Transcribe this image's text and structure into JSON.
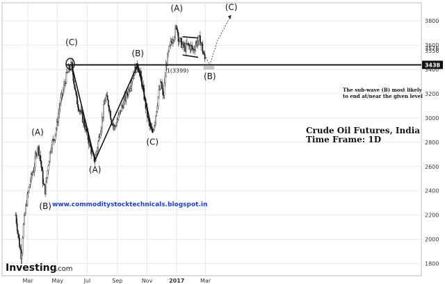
{
  "chart_data": {
    "type": "candlestick",
    "title": "Crude Oil Futures, India",
    "subtitle": "Time Frame: 1D",
    "ylim": [
      1700,
      3950
    ],
    "y_ticks": [
      1800,
      2000,
      2200,
      2400,
      2600,
      2800,
      3000,
      3200,
      3400,
      3600,
      3800
    ],
    "x_labels": [
      "Mar",
      "May",
      "Jul",
      "Sep",
      "Nov",
      "2017",
      "Mar"
    ],
    "x_label_days": [
      0,
      61,
      122,
      184,
      245,
      306,
      365
    ],
    "x_range_days": [
      -25,
      425
    ],
    "grid": true,
    "price_path": [
      [
        -25,
        2200
      ],
      [
        -18,
        1980
      ],
      [
        -13,
        1850
      ],
      [
        -10,
        2080
      ],
      [
        -3,
        2300
      ],
      [
        5,
        2480
      ],
      [
        12,
        2580
      ],
      [
        20,
        2770
      ],
      [
        25,
        2690
      ],
      [
        32,
        2450
      ],
      [
        36,
        2400
      ],
      [
        42,
        2620
      ],
      [
        48,
        2780
      ],
      [
        54,
        2830
      ],
      [
        60,
        2950
      ],
      [
        66,
        3120
      ],
      [
        72,
        3210
      ],
      [
        78,
        3330
      ],
      [
        84,
        3400
      ],
      [
        90,
        3440
      ],
      [
        94,
        3320
      ],
      [
        100,
        3150
      ],
      [
        108,
        3050
      ],
      [
        116,
        2950
      ],
      [
        124,
        2830
      ],
      [
        132,
        2700
      ],
      [
        138,
        2650
      ],
      [
        144,
        2790
      ],
      [
        150,
        2920
      ],
      [
        156,
        3080
      ],
      [
        160,
        3180
      ],
      [
        166,
        3110
      ],
      [
        172,
        2980
      ],
      [
        178,
        2920
      ],
      [
        185,
        2990
      ],
      [
        192,
        3080
      ],
      [
        200,
        3160
      ],
      [
        208,
        3240
      ],
      [
        214,
        3330
      ],
      [
        220,
        3400
      ],
      [
        226,
        3430
      ],
      [
        232,
        3340
      ],
      [
        238,
        3200
      ],
      [
        244,
        3050
      ],
      [
        250,
        2930
      ],
      [
        256,
        2880
      ],
      [
        262,
        3000
      ],
      [
        268,
        3180
      ],
      [
        274,
        3300
      ],
      [
        278,
        3150
      ],
      [
        284,
        3430
      ],
      [
        290,
        3560
      ],
      [
        296,
        3640
      ],
      [
        302,
        3700
      ],
      [
        306,
        3760
      ],
      [
        310,
        3650
      ],
      [
        316,
        3610
      ],
      [
        322,
        3570
      ],
      [
        328,
        3600
      ],
      [
        334,
        3590
      ],
      [
        340,
        3560
      ],
      [
        346,
        3620
      ],
      [
        352,
        3650
      ],
      [
        356,
        3620
      ],
      [
        360,
        3540
      ],
      [
        364,
        3480
      ]
    ],
    "waves": [
      {
        "label": "(A)",
        "day": 20,
        "price": 2860
      },
      {
        "label": "(B)",
        "day": 36,
        "price": 2250
      },
      {
        "label": "(C)",
        "day": 90,
        "price": 3600
      },
      {
        "label": "(A)",
        "day": 138,
        "price": 2550
      },
      {
        "label": "(B)",
        "day": 226,
        "price": 3510
      },
      {
        "label": "(C)",
        "day": 256,
        "price": 2780
      },
      {
        "label": "(A)",
        "day": 306,
        "price": 3880
      },
      {
        "label": "(B)",
        "day": 374,
        "price": 3320
      },
      {
        "label": "(C)",
        "day": 418,
        "price": 3890
      }
    ],
    "wave_lines": [
      [
        [
          90,
          3440
        ],
        [
          138,
          2650
        ],
        [
          226,
          3440
        ],
        [
          256,
          2880
        ]
      ],
      [
        [
          318,
          3670
        ],
        [
          350,
          3660
        ]
      ],
      [
        [
          318,
          3520
        ],
        [
          350,
          3500
        ]
      ]
    ],
    "projection": [
      [
        360,
        3540
      ],
      [
        374,
        3438
      ],
      [
        390,
        3640
      ],
      [
        418,
        3850
      ]
    ],
    "horizontal_level": 3438,
    "level_badge": "3438",
    "level_label": "1(3399)",
    "level_price_labels": [
      "3576",
      "3556"
    ],
    "target_box": {
      "day_start": 362,
      "day_end": 382,
      "price_low": 3410,
      "price_high": 3438
    },
    "note_lines": [
      "The sub-wave (B) most likely",
      "to end at/near the given level"
    ]
  },
  "watermark_url": "www.commoditystocktechnicals.blogspot.in",
  "brand": {
    "name": "Investing",
    "suffix": ".com"
  },
  "colors": {
    "badge_bg": "#111111",
    "url": "#1e3dd6",
    "grid": "#e8e8e8",
    "target_box": "#c8c8c8"
  }
}
